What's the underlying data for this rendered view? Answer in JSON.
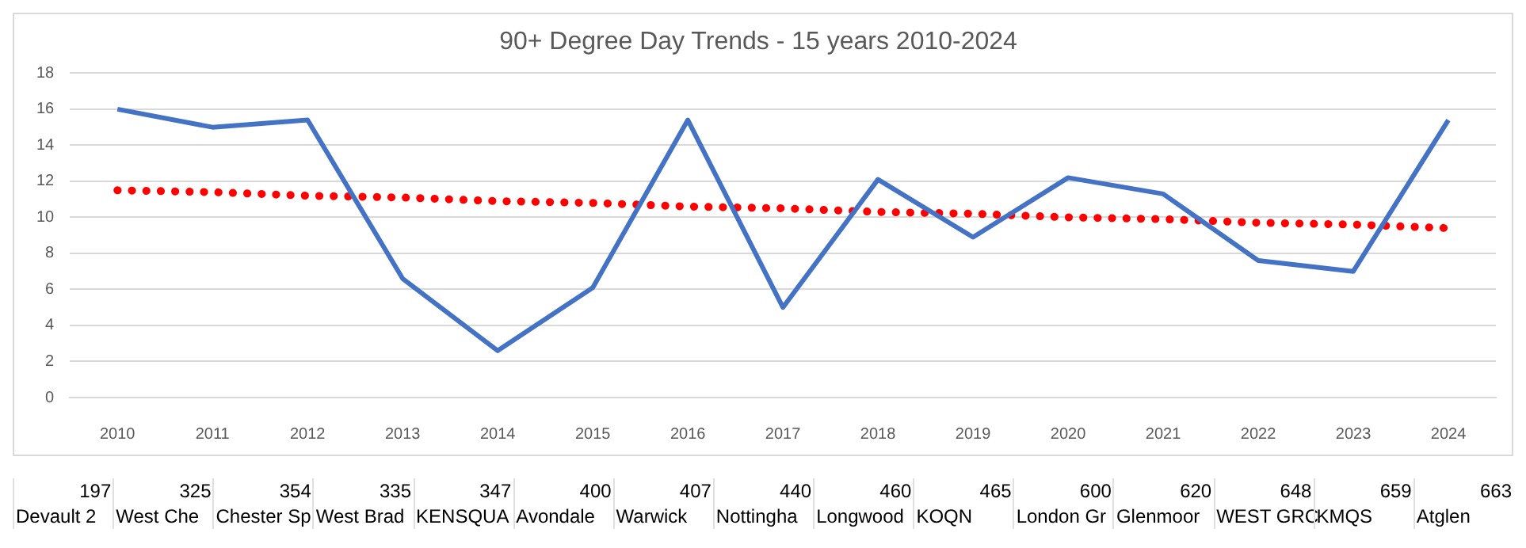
{
  "chart_data": {
    "type": "line",
    "title": "90+ Degree Day Trends - 15 years 2010-2024",
    "categories": [
      "2010",
      "2011",
      "2012",
      "2013",
      "2014",
      "2015",
      "2016",
      "2017",
      "2018",
      "2019",
      "2020",
      "2021",
      "2022",
      "2023",
      "2024"
    ],
    "series": [
      {
        "color": "#4472c4",
        "values": [
          16,
          15,
          15.4,
          6.6,
          2.6,
          6.1,
          15.4,
          5.0,
          12.1,
          8.9,
          12.2,
          11.3,
          7.6,
          7.0,
          15.4
        ],
        "marker": "none",
        "line_style": "solid"
      },
      {
        "color": "#ff0000",
        "values": [
          11.5,
          11.4,
          11.2,
          11.1,
          10.9,
          10.8,
          10.6,
          10.5,
          10.3,
          10.2,
          10.0,
          9.9,
          9.7,
          9.6,
          9.4
        ],
        "marker": "none",
        "line_style": "dotted"
      }
    ],
    "ylim": [
      0,
      18
    ],
    "yticks": [
      0,
      2,
      4,
      6,
      8,
      10,
      12,
      14,
      16,
      18
    ],
    "grid": "y",
    "legend": false,
    "annotations": [
      "197",
      "325",
      "354",
      "335",
      "347",
      "400",
      "407",
      "440",
      "460",
      "465",
      "600",
      "620",
      "648",
      "659",
      "663",
      "Devault 2",
      "West Che",
      "Chester Sp",
      "West Brad",
      "KENSQUA",
      "Avondale",
      "Warwick",
      "Nottingha",
      "Longwood",
      "KOQN",
      "London Gr",
      "Glenmoor",
      "WEST GRC",
      "KMQS",
      "Atglen"
    ]
  }
}
